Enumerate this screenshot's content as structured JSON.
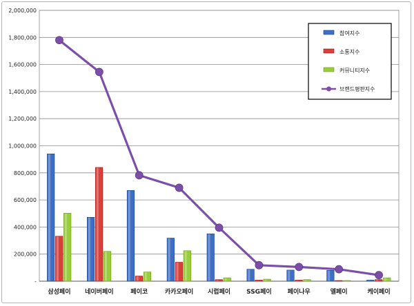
{
  "chart_data": {
    "type": "bar",
    "categories": [
      "삼성페이",
      "네이버페이",
      "페이코",
      "카카오페이",
      "시럽페이",
      "SSG페이",
      "페이나우",
      "엘페이",
      "케이페이"
    ],
    "series": [
      {
        "name": "참여지수",
        "kind": "bar",
        "color": "#3f6fc4",
        "values": [
          940000,
          472000,
          670000,
          318000,
          350000,
          88000,
          82000,
          80000,
          8000
        ]
      },
      {
        "name": "소통지수",
        "kind": "bar",
        "color": "#d9403b",
        "values": [
          332000,
          840000,
          38000,
          140000,
          12000,
          8000,
          8000,
          5000,
          12000
        ]
      },
      {
        "name": "커뮤니티지수",
        "kind": "bar",
        "color": "#9acd3c",
        "values": [
          502000,
          220000,
          68000,
          225000,
          25000,
          15000,
          12000,
          5000,
          25000
        ]
      },
      {
        "name": "브랜드평판지수",
        "kind": "line",
        "color": "#7b4ea8",
        "values": [
          1780000,
          1545000,
          782000,
          690000,
          395000,
          118000,
          105000,
          88000,
          45000
        ]
      }
    ],
    "ylim": [
      0,
      2000000
    ],
    "yticks": [
      {
        "value": 0,
        "label": "-"
      },
      {
        "value": 200000,
        "label": "200,000"
      },
      {
        "value": 400000,
        "label": "400,000"
      },
      {
        "value": 600000,
        "label": "600,000"
      },
      {
        "value": 800000,
        "label": "800,000"
      },
      {
        "value": 1000000,
        "label": "1,000,000"
      },
      {
        "value": 1200000,
        "label": "1,200,000"
      },
      {
        "value": 1400000,
        "label": "1,400,000"
      },
      {
        "value": 1600000,
        "label": "1,600,000"
      },
      {
        "value": 1800000,
        "label": "1,800,000"
      },
      {
        "value": 2000000,
        "label": "2,000,000"
      }
    ],
    "grid": true,
    "legend_position": "top-right"
  }
}
